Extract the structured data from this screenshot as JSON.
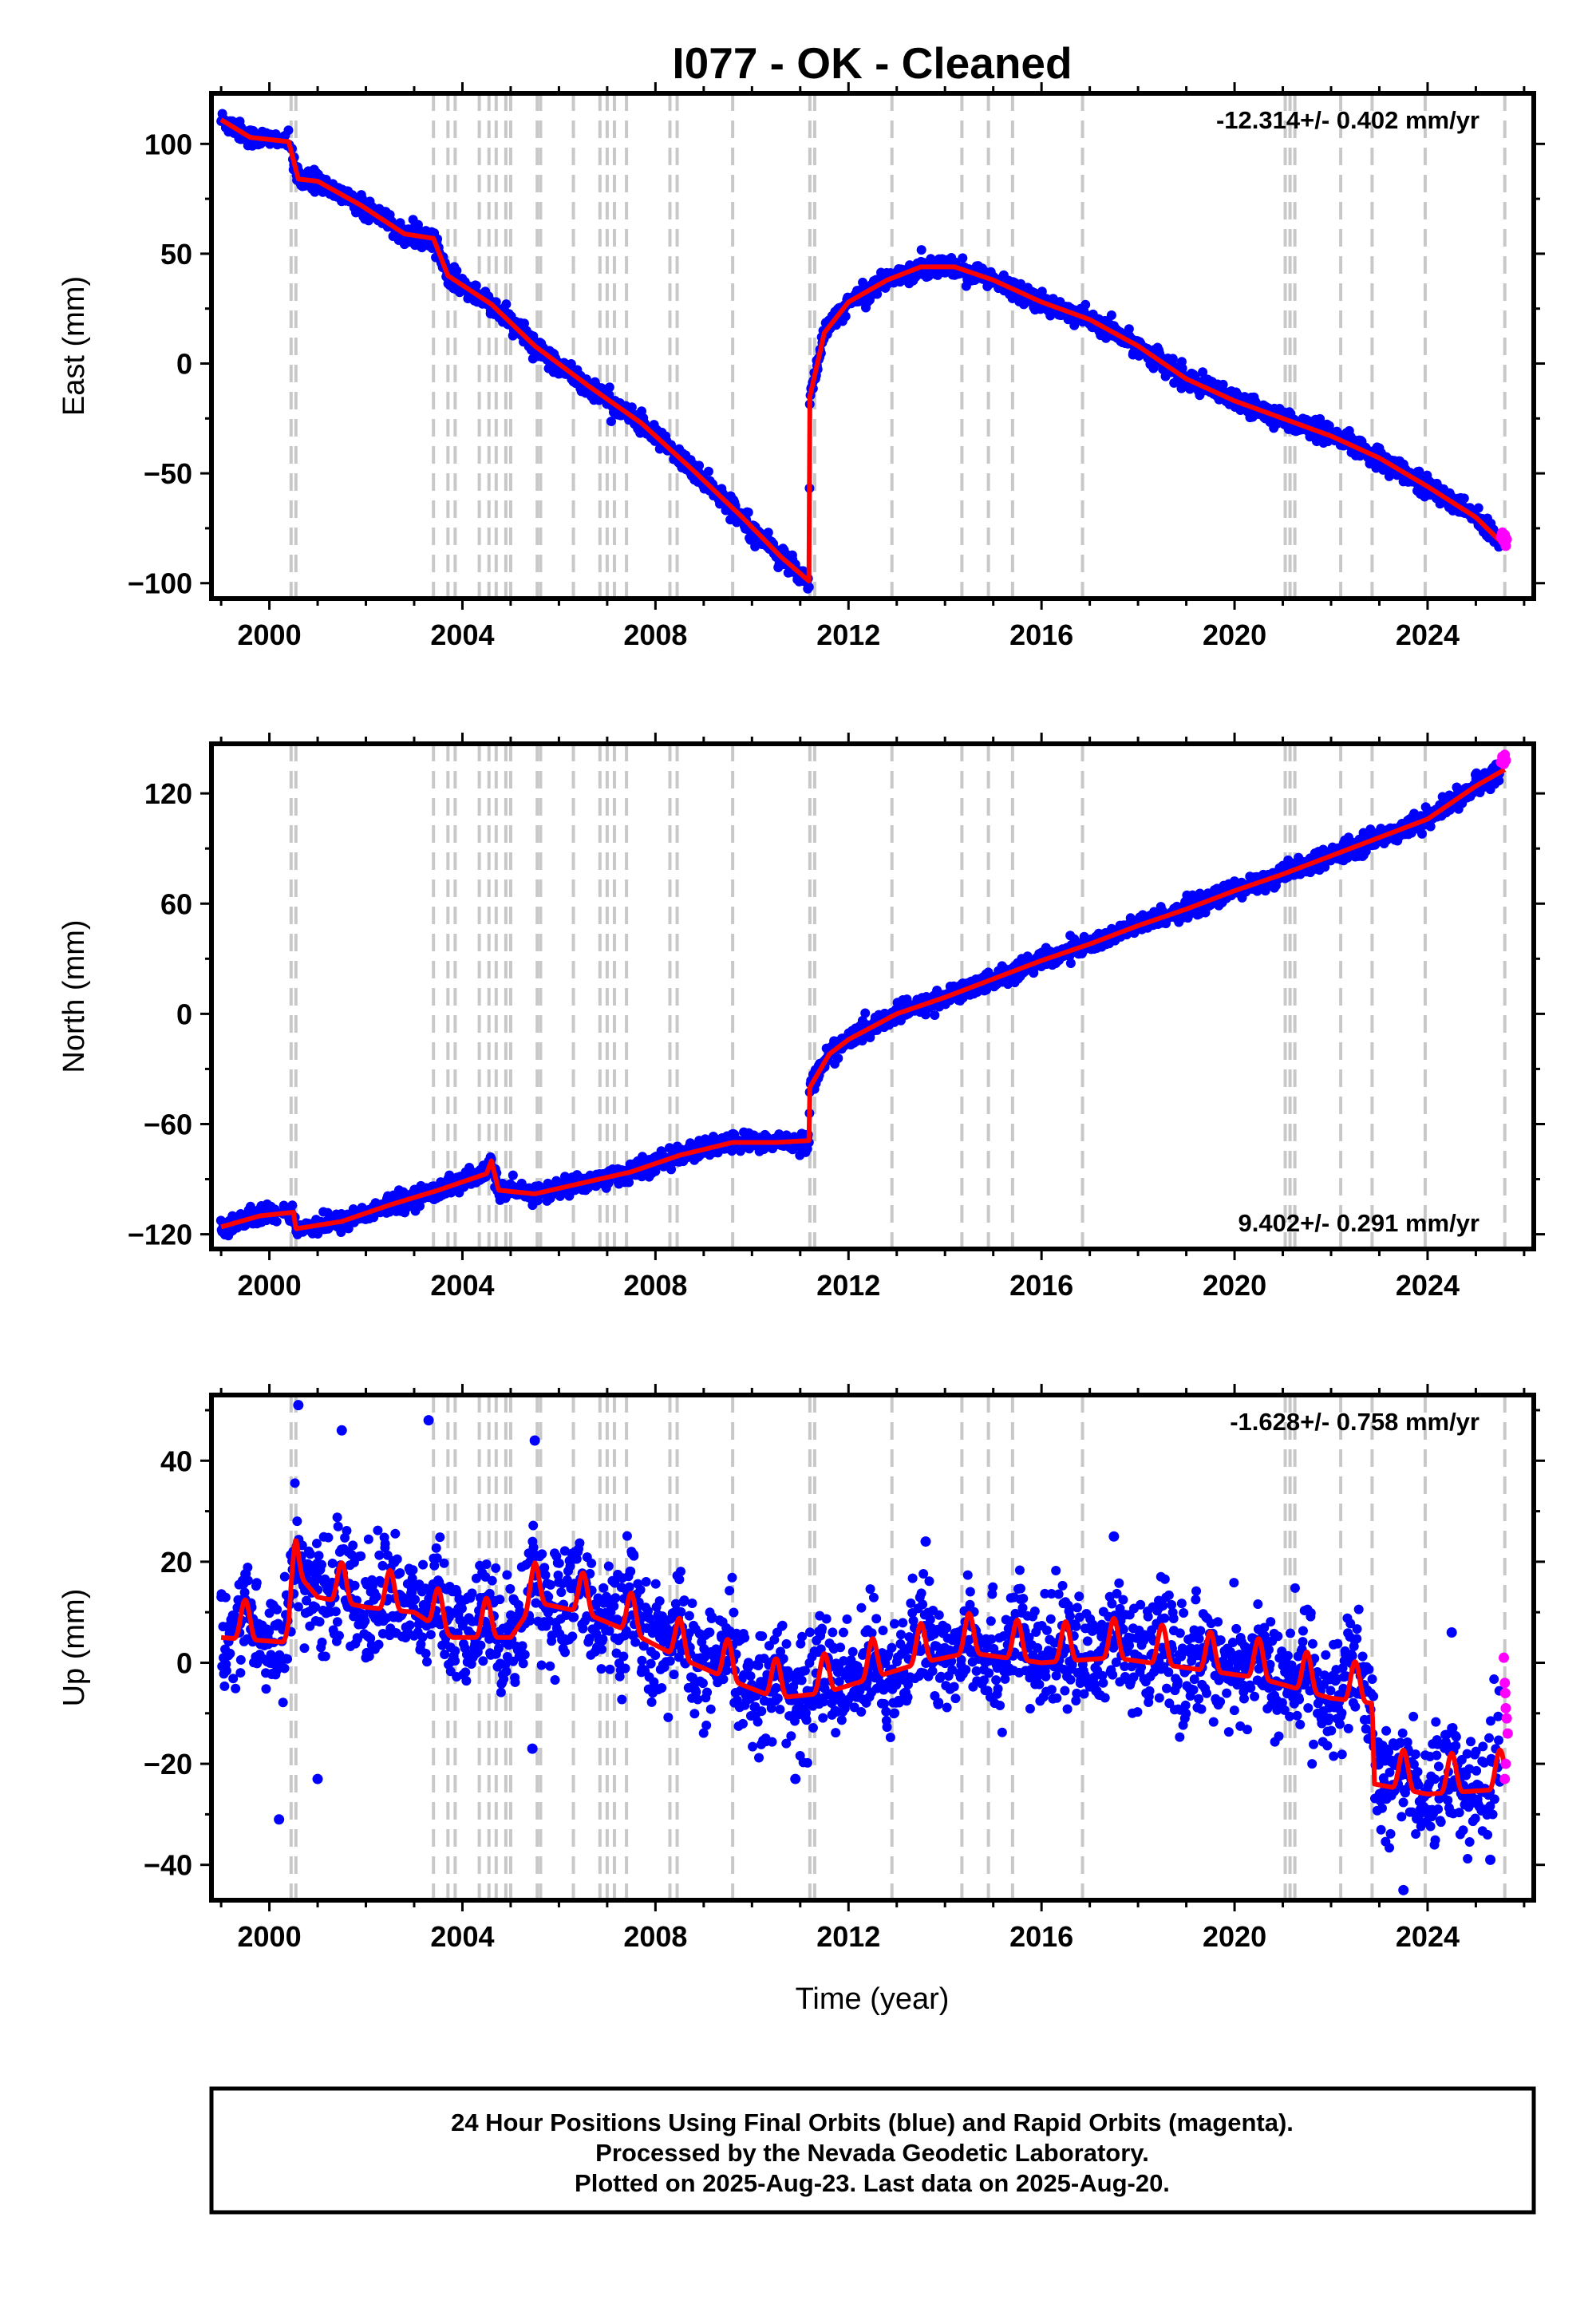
{
  "title": "I077  - OK - Cleaned",
  "xlabel": "Time (year)",
  "footer": {
    "line1": "24 Hour Positions Using Final Orbits (blue) and Rapid Orbits (magenta).",
    "line2": "Processed by the Nevada Geodetic Laboratory.",
    "line3": "Plotted on 2025-Aug-23. Last data on 2025-Aug-20."
  },
  "colors": {
    "final_orbits": "#0000ff",
    "rapid_orbits": "#ff00ff",
    "fit": "#ff0000",
    "events": "#c8c8c8"
  },
  "event_lines": [
    2000.45,
    2000.55,
    2003.4,
    2003.7,
    2003.85,
    2004.35,
    2004.55,
    2004.7,
    2004.9,
    2005.0,
    2005.55,
    2005.62,
    2006.3,
    2006.85,
    2007.0,
    2007.15,
    2007.4,
    2008.3,
    2008.45,
    2009.6,
    2011.2,
    2011.3,
    2012.9,
    2014.35,
    2014.9,
    2015.4,
    2016.85,
    2021.05,
    2021.15,
    2021.25,
    2022.2,
    2022.85,
    2023.95,
    2025.6
  ],
  "chart_data": [
    {
      "type": "scatter",
      "name": "east",
      "ylabel": "East (mm)",
      "rate": "-12.314+/- 0.402 mm/yr",
      "rate_position": "top-right",
      "xlim": [
        1998.8,
        2026.2
      ],
      "ylim": [
        -107,
        123
      ],
      "xticks": [
        2000,
        2004,
        2008,
        2012,
        2016,
        2020,
        2024
      ],
      "yticks": [
        -100,
        -50,
        0,
        50,
        100
      ],
      "ytick_labels": [
        "−100",
        "−50",
        "0",
        "50",
        "100"
      ],
      "noise": 2.2,
      "seasonal": 0,
      "trend": [
        [
          1999.0,
          111
        ],
        [
          1999.6,
          103
        ],
        [
          2000.4,
          101
        ],
        [
          2000.6,
          84
        ],
        [
          2001.0,
          83
        ],
        [
          2001.9,
          72
        ],
        [
          2002.8,
          59
        ],
        [
          2003.4,
          57
        ],
        [
          2003.7,
          40
        ],
        [
          2004.6,
          27
        ],
        [
          2005.5,
          8
        ],
        [
          2006.6,
          -10
        ],
        [
          2007.7,
          -27
        ],
        [
          2008.8,
          -49
        ],
        [
          2009.8,
          -70
        ],
        [
          2010.6,
          -88
        ],
        [
          2011.18,
          -99
        ],
        [
          2011.2,
          -15
        ],
        [
          2011.5,
          14
        ],
        [
          2012.0,
          28
        ],
        [
          2012.8,
          38
        ],
        [
          2013.5,
          44
        ],
        [
          2014.2,
          44
        ],
        [
          2015.0,
          38
        ],
        [
          2016.0,
          28
        ],
        [
          2017.0,
          20
        ],
        [
          2018.0,
          8
        ],
        [
          2019.0,
          -7
        ],
        [
          2020.0,
          -17
        ],
        [
          2021.0,
          -25
        ],
        [
          2022.0,
          -33
        ],
        [
          2023.0,
          -43
        ],
        [
          2024.0,
          -56
        ],
        [
          2025.0,
          -70
        ],
        [
          2025.6,
          -83
        ]
      ],
      "rapid": [
        [
          2025.52,
          -79
        ],
        [
          2025.55,
          -77
        ],
        [
          2025.58,
          -81
        ],
        [
          2025.6,
          -78
        ],
        [
          2025.62,
          -83
        ],
        [
          2025.64,
          -80
        ]
      ]
    },
    {
      "type": "scatter",
      "name": "north",
      "ylabel": "North (mm)",
      "rate": "9.402+/- 0.291 mm/yr",
      "rate_position": "bottom-right",
      "xlim": [
        1998.8,
        2026.2
      ],
      "ylim": [
        -128,
        147
      ],
      "xticks": [
        2000,
        2004,
        2008,
        2012,
        2016,
        2020,
        2024
      ],
      "yticks": [
        -120,
        -60,
        0,
        60,
        120
      ],
      "ytick_labels": [
        "−120",
        "−60",
        "0",
        "60",
        "120"
      ],
      "noise": 2.5,
      "seasonal": 0,
      "trend": [
        [
          1999.0,
          -116
        ],
        [
          1999.8,
          -110
        ],
        [
          2000.5,
          -108
        ],
        [
          2000.55,
          -117
        ],
        [
          2001.5,
          -113
        ],
        [
          2002.5,
          -104
        ],
        [
          2003.5,
          -96
        ],
        [
          2004.5,
          -87
        ],
        [
          2004.6,
          -80
        ],
        [
          2004.75,
          -96
        ],
        [
          2005.5,
          -98
        ],
        [
          2006.5,
          -92
        ],
        [
          2007.5,
          -86
        ],
        [
          2008.5,
          -77
        ],
        [
          2009.6,
          -70
        ],
        [
          2010.5,
          -70
        ],
        [
          2011.18,
          -69
        ],
        [
          2011.2,
          -40
        ],
        [
          2011.6,
          -22
        ],
        [
          2012.0,
          -14
        ],
        [
          2013.0,
          0
        ],
        [
          2014.0,
          9
        ],
        [
          2015.0,
          19
        ],
        [
          2016.0,
          29
        ],
        [
          2017.0,
          38
        ],
        [
          2018.0,
          48
        ],
        [
          2019.0,
          57
        ],
        [
          2020.0,
          67
        ],
        [
          2021.0,
          76
        ],
        [
          2022.0,
          86
        ],
        [
          2023.0,
          96
        ],
        [
          2024.0,
          106
        ],
        [
          2025.0,
          124
        ],
        [
          2025.6,
          133
        ]
      ],
      "rapid": [
        [
          2025.52,
          137
        ],
        [
          2025.55,
          140
        ],
        [
          2025.58,
          136
        ],
        [
          2025.6,
          141
        ],
        [
          2025.62,
          138
        ]
      ]
    },
    {
      "type": "scatter",
      "name": "up",
      "ylabel": "Up (mm)",
      "rate": "-1.628+/- 0.758 mm/yr",
      "rate_position": "top-right",
      "xlim": [
        1998.8,
        2026.2
      ],
      "ylim": [
        -47,
        53
      ],
      "xticks": [
        2000,
        2004,
        2008,
        2012,
        2016,
        2020,
        2024
      ],
      "yticks": [
        -40,
        -20,
        0,
        20,
        40
      ],
      "ytick_labels": [
        "−40",
        "−20",
        "0",
        "20",
        "40"
      ],
      "noise": 5.5,
      "seasonal": 6,
      "trend": [
        [
          1999.0,
          5
        ],
        [
          2000.4,
          4
        ],
        [
          2000.55,
          18
        ],
        [
          2001.0,
          13
        ],
        [
          2002.0,
          11
        ],
        [
          2003.0,
          10
        ],
        [
          2003.8,
          5
        ],
        [
          2005.0,
          5
        ],
        [
          2005.5,
          12
        ],
        [
          2006.5,
          10
        ],
        [
          2007.5,
          6
        ],
        [
          2008.5,
          1
        ],
        [
          2009.7,
          -4
        ],
        [
          2010.5,
          -7
        ],
        [
          2011.5,
          -6
        ],
        [
          2012.5,
          -3
        ],
        [
          2013.5,
          0
        ],
        [
          2014.5,
          2
        ],
        [
          2016.0,
          0
        ],
        [
          2017.5,
          1
        ],
        [
          2019.0,
          -1
        ],
        [
          2020.5,
          -3
        ],
        [
          2022.0,
          -7
        ],
        [
          2022.85,
          -8
        ],
        [
          2022.9,
          -24
        ],
        [
          2024.0,
          -26
        ],
        [
          2025.6,
          -25
        ]
      ],
      "outliers": [
        [
          2000.6,
          51
        ],
        [
          2001.5,
          46
        ],
        [
          2003.3,
          48
        ],
        [
          2005.5,
          44
        ],
        [
          2000.2,
          -31
        ],
        [
          2001.0,
          -23
        ],
        [
          2005.45,
          -17
        ],
        [
          2010.9,
          -23
        ],
        [
          2023.5,
          -45
        ],
        [
          2024.5,
          6
        ],
        [
          2025.3,
          -39
        ],
        [
          2013.6,
          24
        ],
        [
          2017.5,
          25
        ]
      ],
      "rapid": [
        [
          2025.58,
          1
        ],
        [
          2025.6,
          -4
        ],
        [
          2025.61,
          -6
        ],
        [
          2025.62,
          -9
        ],
        [
          2025.64,
          -11
        ],
        [
          2025.66,
          -14
        ],
        [
          2025.62,
          -20
        ],
        [
          2025.6,
          -23
        ]
      ]
    }
  ]
}
